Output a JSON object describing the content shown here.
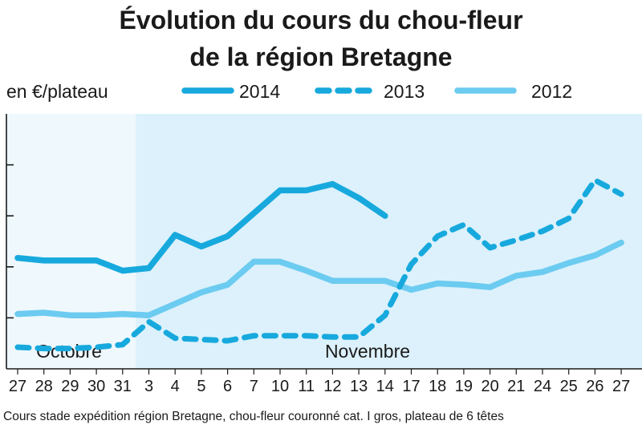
{
  "chart_data": {
    "type": "line",
    "title_line1": "Évolution du cours du chou-fleur",
    "title_line2": "de la région Bretagne",
    "ylabel": "en €/plateau",
    "months": [
      {
        "label": "Octobre",
        "from": 0,
        "to": 4
      },
      {
        "label": "Novembre",
        "from": 5,
        "to": 25
      }
    ],
    "categories": [
      "27",
      "28",
      "29",
      "30",
      "31",
      "3",
      "4",
      "5",
      "6",
      "7",
      "10",
      "11",
      "12",
      "13",
      "14",
      "17",
      "18",
      "19",
      "20",
      "21",
      "24",
      "25",
      "26",
      "27"
    ],
    "series": [
      {
        "name": "2014",
        "style": "solid",
        "color": "#17a9dd",
        "values": [
          4.35,
          4.25,
          4.25,
          4.25,
          3.85,
          3.95,
          5.25,
          4.8,
          5.2,
          6.1,
          7.0,
          7.0,
          7.25,
          6.7,
          6.0,
          null,
          null,
          null,
          null,
          null,
          null,
          null,
          null,
          null
        ]
      },
      {
        "name": "2013",
        "style": "dashed",
        "color": "#17a9dd",
        "values": [
          0.85,
          0.8,
          0.8,
          0.85,
          0.95,
          1.85,
          1.2,
          1.15,
          1.1,
          1.3,
          1.3,
          1.3,
          1.25,
          1.25,
          2.1,
          4.1,
          5.2,
          5.65,
          4.75,
          5.05,
          5.4,
          5.9,
          7.4,
          6.85
        ]
      },
      {
        "name": "2012",
        "style": "solid",
        "color": "#6ccbf0",
        "values": [
          2.15,
          2.2,
          2.1,
          2.1,
          2.15,
          2.1,
          2.55,
          3.0,
          3.3,
          4.2,
          4.2,
          3.85,
          3.45,
          3.45,
          3.45,
          3.1,
          3.35,
          3.3,
          3.2,
          3.65,
          3.8,
          4.15,
          4.45,
          4.95
        ]
      }
    ],
    "ylim": [
      0,
      10
    ],
    "y_gridline_marks": [
      2,
      4,
      6,
      8
    ],
    "shaded_region_start_index": 5,
    "colors": {
      "background_light": "#eef8fd",
      "background_dark": "#dcf1fb",
      "axis": "#1a1a1a"
    },
    "source_note": "Cours stade expédition région Bretagne, chou-fleur couronné cat. I gros, plateau de 6 têtes",
    "grid": false,
    "legend_placement": "top"
  }
}
